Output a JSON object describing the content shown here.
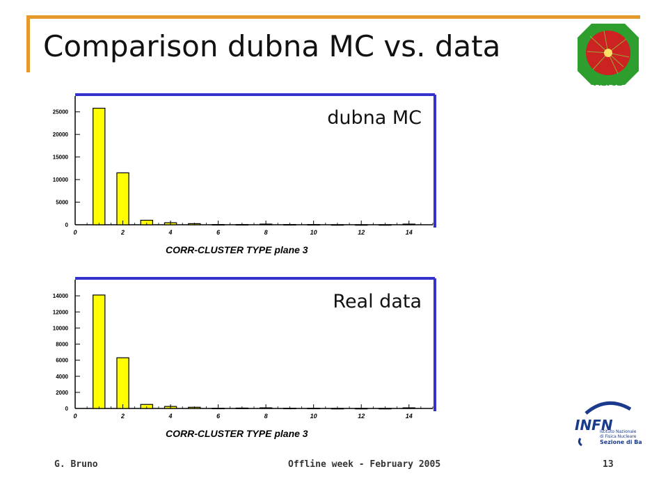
{
  "slide": {
    "title": "Comparison dubna MC vs. data",
    "logo_text": "ALICE",
    "infn": {
      "mark": "INFN",
      "line1": "Istituto Nazionale",
      "line2": "di Fisica Nucleare",
      "line3": "Sezione di Bari"
    },
    "footer": {
      "author": "G. Bruno",
      "event": "Offline week - February  2005",
      "page": "13"
    }
  },
  "colors": {
    "accent": "#e69a2e",
    "axis_frame": "#3333cc",
    "bar_fill": "#ffff00",
    "logo_green": "#2e9e2e",
    "logo_red": "#cc2222",
    "infn_blue": "#1a3a8c"
  },
  "chart_data": [
    {
      "type": "bar",
      "annotation": "dubna MC",
      "xlabel": "CORR-CLUSTER TYPE  plane 3",
      "ylabel": "",
      "xlim": [
        0,
        15
      ],
      "ylim": [
        0,
        28500
      ],
      "xticks": [
        "0",
        "2",
        "4",
        "6",
        "8",
        "10",
        "12",
        "14"
      ],
      "yticks": [
        "0",
        "5000",
        "10000",
        "15000",
        "20000",
        "25000"
      ],
      "x": [
        1,
        2,
        3,
        4,
        5,
        6,
        7,
        8,
        9,
        10,
        11,
        12,
        13,
        14
      ],
      "values": [
        25800,
        11500,
        1000,
        450,
        250,
        50,
        50,
        150,
        50,
        50,
        20,
        20,
        20,
        150
      ]
    },
    {
      "type": "bar",
      "annotation": "Real data",
      "xlabel": "CORR-CLUSTER TYPE  plane 3",
      "ylabel": "",
      "xlim": [
        0,
        15
      ],
      "ylim": [
        0,
        16000
      ],
      "xticks": [
        "0",
        "2",
        "4",
        "6",
        "8",
        "10",
        "12",
        "14"
      ],
      "yticks": [
        "0",
        "2000",
        "4000",
        "6000",
        "8000",
        "10000",
        "12000",
        "14000"
      ],
      "x": [
        1,
        2,
        3,
        4,
        5,
        6,
        7,
        8,
        9,
        10,
        11,
        12,
        13,
        14
      ],
      "values": [
        14100,
        6300,
        500,
        250,
        150,
        30,
        50,
        80,
        30,
        30,
        10,
        10,
        10,
        80
      ]
    }
  ]
}
